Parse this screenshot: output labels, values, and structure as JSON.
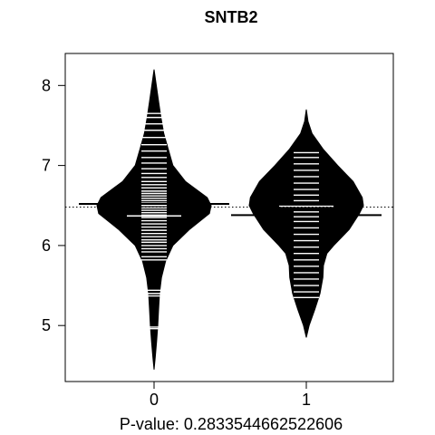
{
  "chart_data": {
    "type": "beanplot",
    "title": "SNTB2",
    "xlabel": "P-value: 0.2833544662522606",
    "categories": [
      "0",
      "1"
    ],
    "yticks": [
      "5",
      "6",
      "7",
      "8"
    ],
    "ylim": [
      4.3,
      8.4
    ],
    "overall_median": 6.48,
    "series": [
      {
        "group": "0",
        "group_median": 6.52,
        "beanline": 6.37,
        "range": [
          4.45,
          8.2
        ],
        "density": [
          [
            4.45,
            0.0
          ],
          [
            4.6,
            0.02
          ],
          [
            4.8,
            0.045
          ],
          [
            5.0,
            0.065
          ],
          [
            5.2,
            0.08
          ],
          [
            5.4,
            0.095
          ],
          [
            5.6,
            0.13
          ],
          [
            5.8,
            0.2
          ],
          [
            6.0,
            0.33
          ],
          [
            6.2,
            0.62
          ],
          [
            6.4,
            0.97
          ],
          [
            6.5,
            1.0
          ],
          [
            6.6,
            0.93
          ],
          [
            6.8,
            0.55
          ],
          [
            7.0,
            0.33
          ],
          [
            7.2,
            0.25
          ],
          [
            7.4,
            0.17
          ],
          [
            7.6,
            0.12
          ],
          [
            7.8,
            0.08
          ],
          [
            8.0,
            0.04
          ],
          [
            8.2,
            0.0
          ]
        ],
        "observations": [
          4.96,
          4.98,
          5.37,
          5.4,
          5.44,
          5.82,
          5.86,
          5.92,
          5.96,
          6.0,
          6.04,
          6.07,
          6.11,
          6.15,
          6.19,
          6.23,
          6.27,
          6.31,
          6.35,
          6.38,
          6.41,
          6.44,
          6.47,
          6.5,
          6.53,
          6.56,
          6.59,
          6.62,
          6.65,
          6.68,
          6.72,
          6.76,
          6.8,
          6.85,
          6.9,
          6.96,
          7.03,
          7.1,
          7.18,
          7.26,
          7.35,
          7.44,
          7.52,
          7.6,
          7.65
        ]
      },
      {
        "group": "1",
        "group_median": 6.38,
        "beanline": 6.49,
        "range": [
          4.85,
          7.7
        ],
        "density": [
          [
            4.85,
            0.0
          ],
          [
            5.0,
            0.05
          ],
          [
            5.2,
            0.15
          ],
          [
            5.4,
            0.24
          ],
          [
            5.6,
            0.29
          ],
          [
            5.75,
            0.3
          ],
          [
            5.9,
            0.36
          ],
          [
            6.0,
            0.48
          ],
          [
            6.2,
            0.75
          ],
          [
            6.4,
            0.93
          ],
          [
            6.5,
            1.0
          ],
          [
            6.6,
            0.98
          ],
          [
            6.8,
            0.82
          ],
          [
            7.0,
            0.55
          ],
          [
            7.2,
            0.3
          ],
          [
            7.4,
            0.1
          ],
          [
            7.55,
            0.03
          ],
          [
            7.7,
            0.0
          ]
        ],
        "observations": [
          5.35,
          5.42,
          5.5,
          5.58,
          5.66,
          5.74,
          5.82,
          5.9,
          5.98,
          6.06,
          6.14,
          6.22,
          6.3,
          6.36,
          6.42,
          6.49,
          6.56,
          6.63,
          6.7,
          6.78,
          6.86,
          6.94,
          7.02,
          7.1,
          7.16
        ]
      }
    ]
  }
}
